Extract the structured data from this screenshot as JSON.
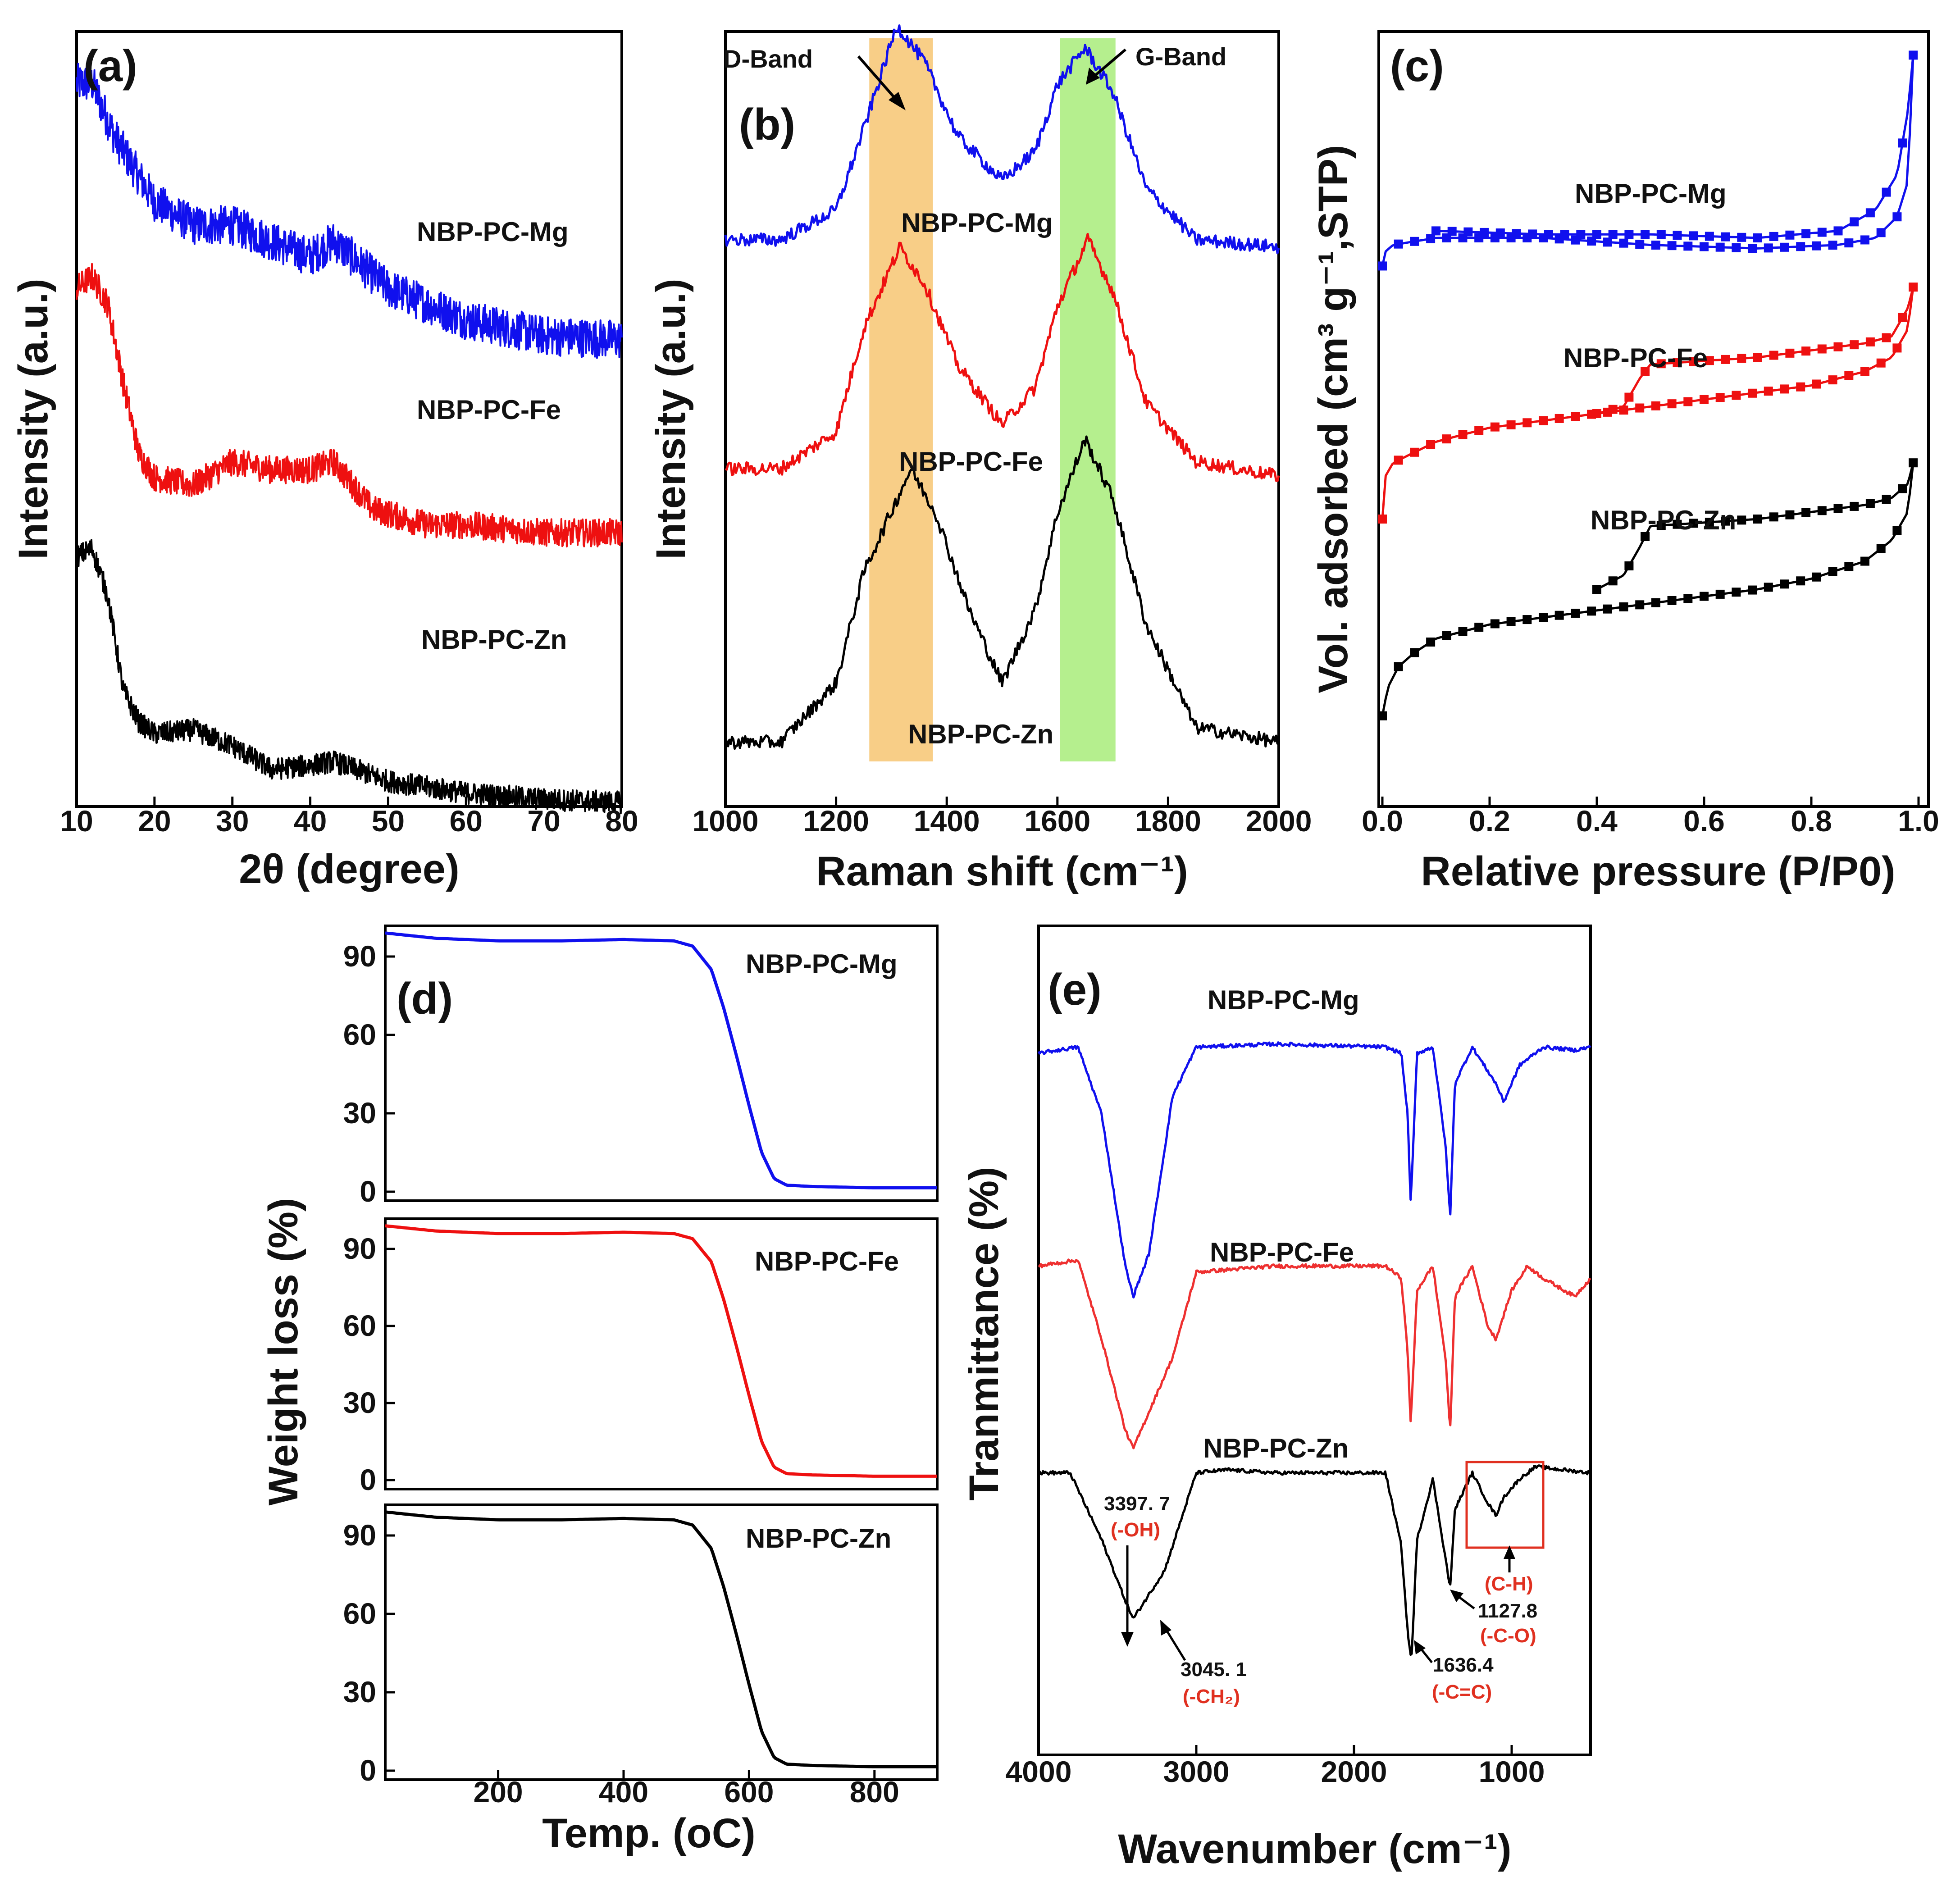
{
  "chart_data": [
    {
      "id": "a",
      "type": "line",
      "panel_label": "(a)",
      "xlabel": "2θ (degree)",
      "ylabel": "Intensity (a.u.)",
      "xlim": [
        10,
        80
      ],
      "xticks": [
        "10",
        "20",
        "30",
        "40",
        "50",
        "60",
        "70",
        "80"
      ],
      "series": [
        {
          "name": "NBP-PC-Mg",
          "color": "#1010ee",
          "x": [
            10,
            12,
            15,
            20,
            25,
            30,
            35,
            40,
            43,
            50,
            55,
            60,
            70,
            80
          ],
          "y": [
            0.9,
            0.9,
            0.83,
            0.75,
            0.72,
            0.72,
            0.7,
            0.68,
            0.7,
            0.64,
            0.62,
            0.6,
            0.58,
            0.575
          ]
        },
        {
          "name": "NBP-PC-Fe",
          "color": "#ee1010",
          "x": [
            10,
            12,
            14,
            16,
            18,
            20,
            25,
            30,
            35,
            40,
            43,
            48,
            55,
            60,
            70,
            80
          ],
          "y": [
            0.64,
            0.655,
            0.62,
            0.52,
            0.43,
            0.4,
            0.39,
            0.42,
            0.41,
            0.41,
            0.42,
            0.36,
            0.34,
            0.34,
            0.33,
            0.33
          ]
        },
        {
          "name": "NBP-PC-Zn",
          "color": "#000000",
          "x": [
            10,
            12,
            14,
            16,
            18,
            20,
            25,
            30,
            35,
            40,
            43,
            50,
            60,
            70,
            80
          ],
          "y": [
            0.3,
            0.31,
            0.25,
            0.13,
            0.09,
            0.075,
            0.08,
            0.06,
            0.03,
            0.035,
            0.04,
            0.015,
            0.0,
            -0.008,
            -0.012
          ]
        }
      ]
    },
    {
      "id": "b",
      "type": "line",
      "panel_label": "(b)",
      "xlabel": "Raman shift (cm⁻¹)",
      "ylabel": "Intensity (a.u.)",
      "xlim": [
        1000,
        2000
      ],
      "xticks": [
        "1000",
        "1200",
        "1400",
        "1600",
        "1800",
        "2000"
      ],
      "bands": [
        {
          "name": "D-Band",
          "range": [
            1260,
            1375
          ],
          "color": "#f7c672"
        },
        {
          "name": "G-Band",
          "range": [
            1605,
            1705
          ],
          "color": "#a8ec7a"
        }
      ],
      "series": [
        {
          "name": "NBP-PC-Mg",
          "color": "#1010ee",
          "x": [
            1000,
            1100,
            1200,
            1250,
            1310,
            1360,
            1420,
            1500,
            1560,
            1600,
            1650,
            1700,
            1760,
            1850,
            2000
          ],
          "y": [
            0.7,
            0.7,
            0.74,
            0.85,
            0.99,
            0.94,
            0.84,
            0.78,
            0.82,
            0.91,
            0.96,
            0.9,
            0.77,
            0.7,
            0.69
          ]
        },
        {
          "name": "NBP-PC-Fe",
          "color": "#ee1010",
          "x": [
            1000,
            1100,
            1200,
            1250,
            1315,
            1360,
            1420,
            1500,
            1560,
            1600,
            1655,
            1700,
            1760,
            1850,
            2000
          ],
          "y": [
            0.39,
            0.39,
            0.44,
            0.58,
            0.69,
            0.64,
            0.53,
            0.45,
            0.5,
            0.61,
            0.7,
            0.63,
            0.48,
            0.4,
            0.38
          ]
        },
        {
          "name": "NBP-PC-Zn",
          "color": "#000000",
          "x": [
            1000,
            1100,
            1200,
            1250,
            1335,
            1380,
            1440,
            1500,
            1560,
            1600,
            1650,
            1700,
            1760,
            1850,
            2000
          ],
          "y": [
            0.02,
            0.02,
            0.1,
            0.25,
            0.39,
            0.33,
            0.2,
            0.1,
            0.2,
            0.33,
            0.43,
            0.35,
            0.18,
            0.04,
            0.02
          ]
        }
      ],
      "annotations": [
        "D-Band",
        "G-Band"
      ]
    },
    {
      "id": "c",
      "type": "line",
      "panel_label": "(c)",
      "xlabel": "Relative pressure (P/P0)",
      "ylabel": "Vol. adsorbed (cm³ g⁻¹,STP)",
      "xlim": [
        0.0,
        1.0
      ],
      "xticks": [
        "0.0",
        "0.2",
        "0.4",
        "0.6",
        "0.8",
        "1.0"
      ],
      "series": [
        {
          "name": "NBP-PC-Mg",
          "color": "#1010ee",
          "x": [
            0.0,
            0.005,
            0.02,
            0.1,
            0.3,
            0.5,
            0.7,
            0.85,
            0.92,
            0.96,
            0.98,
            0.99
          ],
          "y": [
            0.66,
            0.68,
            0.69,
            0.7,
            0.7,
            0.69,
            0.685,
            0.69,
            0.7,
            0.73,
            0.78,
            0.96
          ]
        },
        {
          "name": "NBP-PC-Mg desorption",
          "color": "#1010ee",
          "x": [
            0.99,
            0.98,
            0.96,
            0.92,
            0.85,
            0.7,
            0.5,
            0.3,
            0.1
          ],
          "y": [
            0.96,
            0.88,
            0.79,
            0.74,
            0.71,
            0.7,
            0.705,
            0.705,
            0.71
          ]
        },
        {
          "name": "NBP-PC-Fe",
          "color": "#ee1010",
          "x": [
            0.0,
            0.005,
            0.02,
            0.1,
            0.2,
            0.3,
            0.4,
            0.5,
            0.6,
            0.7,
            0.8,
            0.9,
            0.95,
            0.98,
            0.99
          ],
          "y": [
            0.3,
            0.36,
            0.38,
            0.41,
            0.43,
            0.44,
            0.45,
            0.46,
            0.47,
            0.48,
            0.49,
            0.51,
            0.53,
            0.57,
            0.63
          ]
        },
        {
          "name": "NBP-PC-Fe desorption",
          "color": "#ee1010",
          "x": [
            0.99,
            0.98,
            0.95,
            0.9,
            0.8,
            0.7,
            0.6,
            0.5,
            0.48,
            0.45,
            0.4
          ],
          "y": [
            0.63,
            0.6,
            0.56,
            0.55,
            0.54,
            0.53,
            0.525,
            0.52,
            0.5,
            0.46,
            0.45
          ]
        },
        {
          "name": "NBP-PC-Zn",
          "color": "#000000",
          "x": [
            0.0,
            0.01,
            0.03,
            0.06,
            0.1,
            0.2,
            0.3,
            0.4,
            0.5,
            0.6,
            0.7,
            0.8,
            0.9,
            0.95,
            0.98,
            0.99
          ],
          "y": [
            0.02,
            0.06,
            0.09,
            0.11,
            0.13,
            0.15,
            0.16,
            0.17,
            0.18,
            0.19,
            0.2,
            0.215,
            0.24,
            0.27,
            0.31,
            0.38
          ]
        },
        {
          "name": "NBP-PC-Zn desorption",
          "color": "#000000",
          "x": [
            0.99,
            0.98,
            0.95,
            0.9,
            0.8,
            0.7,
            0.6,
            0.5,
            0.48,
            0.45,
            0.4
          ],
          "y": [
            0.38,
            0.35,
            0.33,
            0.32,
            0.31,
            0.3,
            0.295,
            0.29,
            0.26,
            0.22,
            0.2
          ]
        }
      ]
    },
    {
      "id": "d",
      "type": "line",
      "panel_label": "(d)",
      "xlabel": "Temp. (oC)",
      "ylabel": "Weight loss (%)",
      "xlim": [
        20,
        900
      ],
      "ylim": [
        0,
        100
      ],
      "xticks": [
        "200",
        "400",
        "600",
        "800"
      ],
      "yticks": [
        "0",
        "30",
        "60",
        "90"
      ],
      "series": [
        {
          "name": "NBP-PC-Mg",
          "color": "#1010ee",
          "x": [
            20,
            100,
            200,
            300,
            400,
            480,
            510,
            540,
            560,
            580,
            600,
            620,
            640,
            660,
            700,
            800,
            900
          ],
          "y": [
            99,
            97,
            96,
            96,
            96.5,
            96,
            94,
            85,
            70,
            52,
            33,
            15,
            5,
            2.5,
            2,
            1.5,
            1.5
          ]
        },
        {
          "name": "NBP-PC-Fe",
          "color": "#ee1010",
          "x": [
            20,
            100,
            200,
            300,
            400,
            480,
            510,
            540,
            560,
            580,
            600,
            620,
            640,
            660,
            700,
            800,
            900
          ],
          "y": [
            99,
            97,
            96,
            96,
            96.5,
            96,
            94,
            85,
            70,
            52,
            33,
            15,
            5,
            2.5,
            2,
            1.5,
            1.5
          ]
        },
        {
          "name": "NBP-PC-Zn",
          "color": "#000000",
          "x": [
            20,
            100,
            200,
            300,
            400,
            480,
            510,
            540,
            560,
            580,
            600,
            620,
            640,
            660,
            700,
            800,
            900
          ],
          "y": [
            99,
            97,
            96,
            96,
            96.5,
            96,
            94,
            85,
            70,
            52,
            33,
            15,
            5,
            2.5,
            2,
            1.5,
            1.5
          ]
        }
      ]
    },
    {
      "id": "e",
      "type": "line",
      "panel_label": "(e)",
      "xlabel": "Wavenumber (cm⁻¹)",
      "ylabel": "Tranmittance (%)",
      "xlim": [
        4000,
        500
      ],
      "xticks": [
        "4000",
        "3000",
        "2000",
        "1000"
      ],
      "series": [
        {
          "name": "NBP-PC-Mg",
          "color": "#1010ee",
          "x": [
            4000,
            3750,
            3600,
            3450,
            3400,
            3300,
            3150,
            3000,
            2500,
            1800,
            1700,
            1660,
            1640,
            1600,
            1500,
            1420,
            1390,
            1360,
            1250,
            1100,
            1050,
            950,
            800,
            600,
            500
          ],
          "y": [
            0.95,
            0.96,
            0.85,
            0.6,
            0.55,
            0.62,
            0.88,
            0.96,
            0.965,
            0.96,
            0.95,
            0.85,
            0.7,
            0.95,
            0.96,
            0.8,
            0.68,
            0.9,
            0.96,
            0.9,
            0.87,
            0.93,
            0.96,
            0.955,
            0.96
          ]
        },
        {
          "name": "NBP-PC-Fe",
          "color": "#ee3030",
          "x": [
            4000,
            3750,
            3600,
            3450,
            3400,
            3300,
            3150,
            3000,
            2500,
            1800,
            1700,
            1660,
            1640,
            1600,
            1500,
            1420,
            1390,
            1360,
            1250,
            1150,
            1100,
            1000,
            900,
            800,
            600,
            500
          ],
          "y": [
            0.6,
            0.61,
            0.48,
            0.33,
            0.3,
            0.36,
            0.45,
            0.59,
            0.6,
            0.6,
            0.58,
            0.46,
            0.34,
            0.56,
            0.6,
            0.45,
            0.33,
            0.55,
            0.6,
            0.5,
            0.48,
            0.56,
            0.6,
            0.58,
            0.55,
            0.58
          ]
        },
        {
          "name": "NBP-PC-Zn",
          "color": "#000000",
          "x": [
            4000,
            3800,
            3600,
            3450,
            3400,
            3300,
            3200,
            3100,
            3000,
            2800,
            2500,
            2000,
            1800,
            1700,
            1660,
            1636,
            1600,
            1500,
            1420,
            1390,
            1360,
            1250,
            1150,
            1100,
            1050,
            950,
            850,
            500
          ],
          "y": [
            0.26,
            0.26,
            0.15,
            0.05,
            0.02,
            0.06,
            0.1,
            0.18,
            0.26,
            0.265,
            0.26,
            0.26,
            0.26,
            0.14,
            0.0,
            -0.05,
            0.15,
            0.25,
            0.12,
            0.07,
            0.2,
            0.26,
            0.21,
            0.19,
            0.22,
            0.25,
            0.27,
            0.26
          ]
        }
      ],
      "annotations": [
        {
          "value": "3397. 7",
          "group": "(-OH)"
        },
        {
          "value": "3045. 1",
          "group": "(-CH₂)"
        },
        {
          "value": "1636.4",
          "group": "(-C=C)"
        },
        {
          "value": "1127.8",
          "group": "(-C-O)"
        },
        {
          "value": "",
          "group": "(C-H)"
        }
      ]
    }
  ],
  "colors": {
    "mg": "#1010ee",
    "fe": "#ee1010",
    "zn": "#000000",
    "annotation_red": "#e03020"
  }
}
